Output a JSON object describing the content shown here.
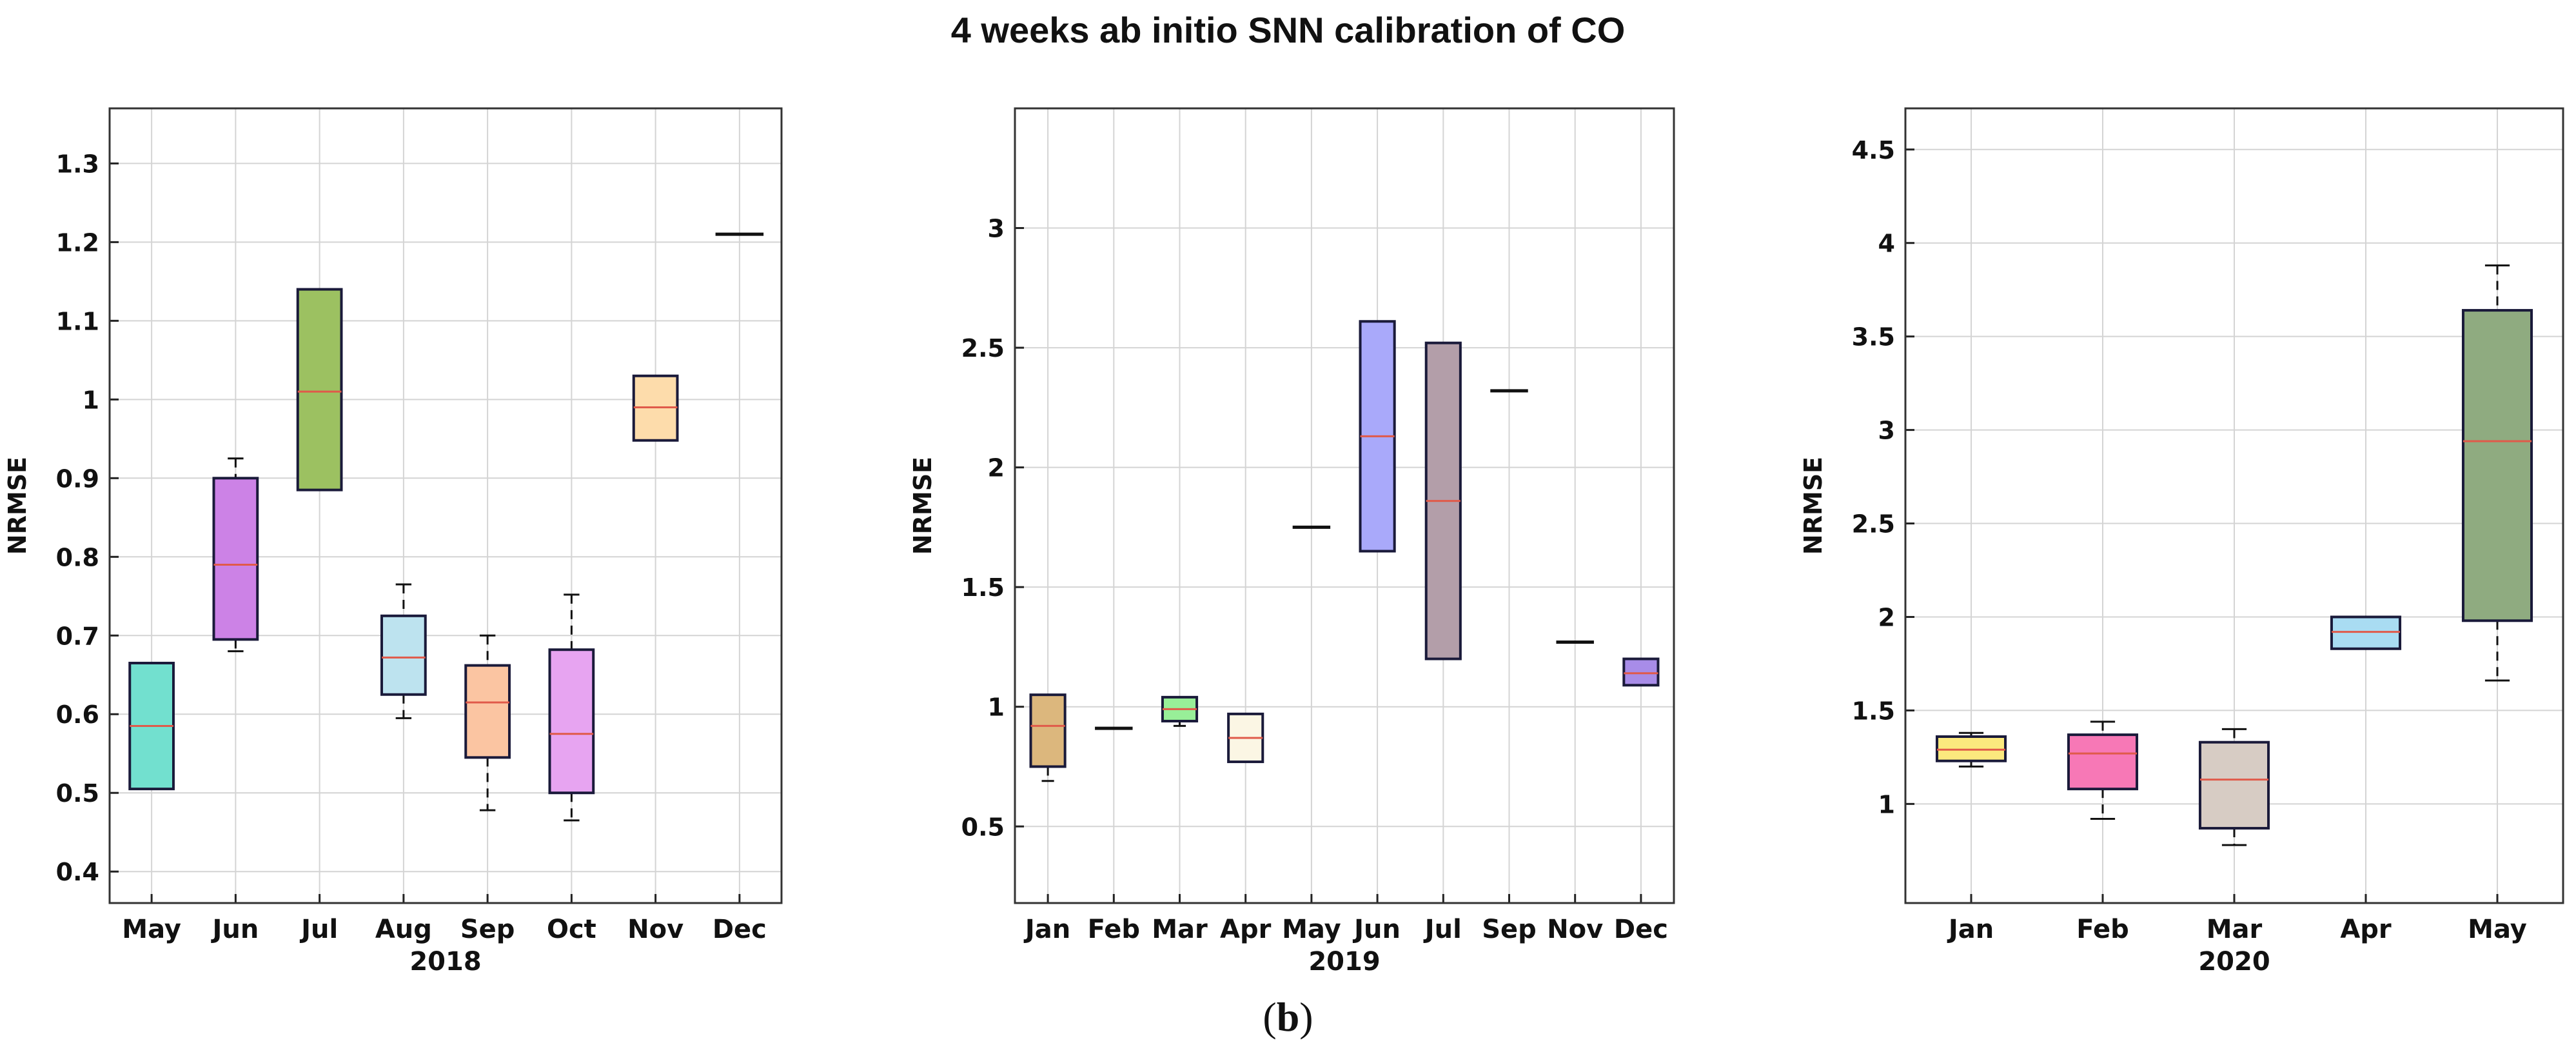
{
  "title": "4 weeks ab initio SNN calibration of CO",
  "caption": {
    "open": "(",
    "letter": "b",
    "close": ")"
  },
  "chart_data": [
    {
      "type": "box",
      "xlabel": "2018",
      "ylabel": "NRMSE",
      "ylim": [
        0.36,
        1.37
      ],
      "yticks": [
        0.4,
        0.5,
        0.6,
        0.7,
        0.8,
        0.9,
        1,
        1.1,
        1.2,
        1.3
      ],
      "ytick_labels": [
        "0.4",
        "0.5",
        "0.6",
        "0.7",
        "0.8",
        "0.9",
        "1",
        "1.1",
        "1.2",
        "1.3"
      ],
      "categories": [
        "May",
        "Jun",
        "Jul",
        "Aug",
        "Sep",
        "Oct",
        "Nov",
        "Dec"
      ],
      "boxes": [
        {
          "q1": 0.505,
          "median": 0.585,
          "q3": 0.665,
          "whisker_low": 0.505,
          "whisker_high": 0.665,
          "color": "#72e0cf"
        },
        {
          "q1": 0.695,
          "median": 0.79,
          "q3": 0.9,
          "whisker_low": 0.68,
          "whisker_high": 0.925,
          "color": "#cc82e6"
        },
        {
          "q1": 0.885,
          "median": 1.01,
          "q3": 1.14,
          "whisker_low": 0.885,
          "whisker_high": 1.14,
          "color": "#9cc161"
        },
        {
          "q1": 0.625,
          "median": 0.672,
          "q3": 0.725,
          "whisker_low": 0.595,
          "whisker_high": 0.765,
          "color": "#bde3ef"
        },
        {
          "q1": 0.545,
          "median": 0.615,
          "q3": 0.662,
          "whisker_low": 0.478,
          "whisker_high": 0.7,
          "color": "#fbc5a2"
        },
        {
          "q1": 0.5,
          "median": 0.575,
          "q3": 0.682,
          "whisker_low": 0.465,
          "whisker_high": 0.752,
          "color": "#e7a4f1"
        },
        {
          "q1": 0.948,
          "median": 0.99,
          "q3": 1.03,
          "whisker_low": 0.948,
          "whisker_high": 1.03,
          "color": "#fddcab"
        },
        {
          "q1": 1.21,
          "median": 1.21,
          "q3": 1.21,
          "whisker_low": 1.21,
          "whisker_high": 1.21,
          "color": "#222222"
        }
      ]
    },
    {
      "type": "box",
      "xlabel": "2019",
      "ylabel": "NRMSE",
      "ylim": [
        0.18,
        3.5
      ],
      "yticks": [
        0.5,
        1,
        1.5,
        2,
        2.5,
        3
      ],
      "ytick_labels": [
        "0.5",
        "1",
        "1.5",
        "2",
        "2.5",
        "3"
      ],
      "categories": [
        "Jan",
        "Feb",
        "Mar",
        "Apr",
        "May",
        "Jun",
        "Jul",
        "Sep",
        "Nov",
        "Dec"
      ],
      "boxes": [
        {
          "q1": 0.75,
          "median": 0.92,
          "q3": 1.05,
          "whisker_low": 0.69,
          "whisker_high": 1.05,
          "color": "#dcb77d"
        },
        {
          "q1": 0.91,
          "median": 0.91,
          "q3": 0.91,
          "whisker_low": 0.91,
          "whisker_high": 0.91,
          "color": "#222222"
        },
        {
          "q1": 0.94,
          "median": 0.99,
          "q3": 1.04,
          "whisker_low": 0.92,
          "whisker_high": 1.04,
          "color": "#98ef98"
        },
        {
          "q1": 0.77,
          "median": 0.87,
          "q3": 0.97,
          "whisker_low": 0.77,
          "whisker_high": 0.97,
          "color": "#fbf6e4"
        },
        {
          "q1": 1.75,
          "median": 1.75,
          "q3": 1.75,
          "whisker_low": 1.75,
          "whisker_high": 1.75,
          "color": "#222222"
        },
        {
          "q1": 1.65,
          "median": 2.13,
          "q3": 2.61,
          "whisker_low": 1.65,
          "whisker_high": 2.61,
          "color": "#a9a9fa"
        },
        {
          "q1": 1.2,
          "median": 1.86,
          "q3": 2.52,
          "whisker_low": 1.2,
          "whisker_high": 2.52,
          "color": "#b39ea9"
        },
        {
          "q1": 2.32,
          "median": 2.32,
          "q3": 2.32,
          "whisker_low": 2.32,
          "whisker_high": 2.32,
          "color": "#222222"
        },
        {
          "q1": 1.27,
          "median": 1.27,
          "q3": 1.27,
          "whisker_low": 1.27,
          "whisker_high": 1.27,
          "color": "#222222"
        },
        {
          "q1": 1.09,
          "median": 1.14,
          "q3": 1.2,
          "whisker_low": 1.09,
          "whisker_high": 1.2,
          "color": "#a88ce8"
        }
      ]
    },
    {
      "type": "box",
      "xlabel": "2020",
      "ylabel": "NRMSE",
      "ylim": [
        0.47,
        4.72
      ],
      "yticks": [
        1,
        1.5,
        2,
        2.5,
        3,
        3.5,
        4,
        4.5
      ],
      "ytick_labels": [
        "1",
        "1.5",
        "2",
        "2.5",
        "3",
        "3.5",
        "4",
        "4.5"
      ],
      "categories": [
        "Jan",
        "Feb",
        "Mar",
        "Apr",
        "May"
      ],
      "boxes": [
        {
          "q1": 1.23,
          "median": 1.29,
          "q3": 1.36,
          "whisker_low": 1.2,
          "whisker_high": 1.38,
          "color": "#fbe97e"
        },
        {
          "q1": 1.08,
          "median": 1.27,
          "q3": 1.37,
          "whisker_low": 0.92,
          "whisker_high": 1.44,
          "color": "#f778b6"
        },
        {
          "q1": 0.87,
          "median": 1.13,
          "q3": 1.33,
          "whisker_low": 0.78,
          "whisker_high": 1.4,
          "color": "#d7ccc4"
        },
        {
          "q1": 1.83,
          "median": 1.92,
          "q3": 2.0,
          "whisker_low": 1.83,
          "whisker_high": 2.0,
          "color": "#a9dcf2"
        },
        {
          "q1": 1.98,
          "median": 2.94,
          "q3": 3.64,
          "whisker_low": 1.66,
          "whisker_high": 3.88,
          "color": "#8fab80"
        }
      ]
    }
  ]
}
